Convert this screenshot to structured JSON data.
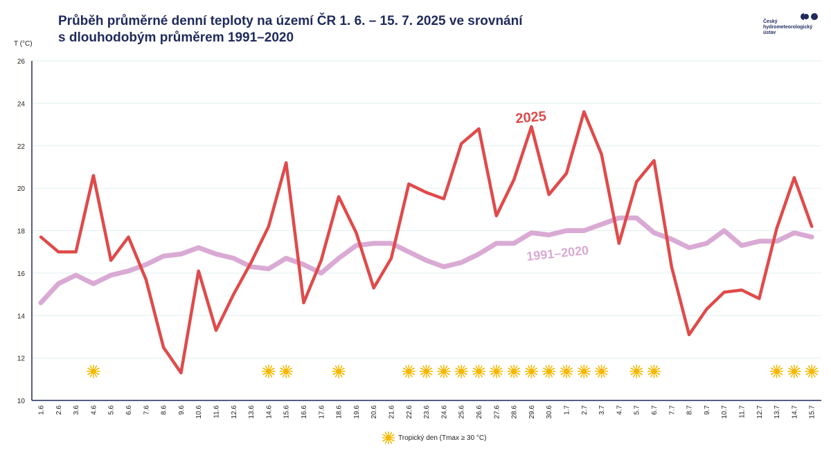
{
  "header": {
    "title_line1": "Průběh průměrné denní teploty na území ČR 1. 6. – 15. 7. 2025 ve srovnání",
    "title_line2": "s dlouhodobým průměrem 1991–2020"
  },
  "logo": {
    "line1": "Český",
    "line2": "hydrometeorologický",
    "line3": "ústav"
  },
  "colors": {
    "series_2025": "#e04a4a",
    "series_normal": "#d9aad3",
    "title": "#1f2a5c",
    "sun": "#f5b800"
  },
  "legend": {
    "icon": "sun-icon",
    "label": "Tropický den (Tmax ≥ 30 °C)"
  },
  "chart_data": {
    "type": "line",
    "ylabel": "T (°C)",
    "ylim": [
      10,
      26
    ],
    "yticks": [
      10,
      12,
      14,
      16,
      18,
      20,
      22,
      24,
      26
    ],
    "grid": true,
    "categories": [
      "1.6",
      "2.6",
      "3.6",
      "4.6",
      "5.6",
      "6.6",
      "7.6",
      "8.6",
      "9.6",
      "10.6",
      "11.6",
      "12.6",
      "13.6",
      "14.6",
      "15.6",
      "16.6",
      "17.6",
      "18.6",
      "19.6",
      "20.6",
      "21.6",
      "22.6",
      "23.6",
      "24.6",
      "25.6",
      "26.6",
      "27.6",
      "28.6",
      "29.6",
      "30.6",
      "1.7",
      "2.7",
      "3.7",
      "4.7",
      "5.7",
      "6.7",
      "7.7",
      "8.7",
      "9.7",
      "10.7",
      "11.7",
      "12.7",
      "13.7",
      "14.7",
      "15.7"
    ],
    "series": [
      {
        "name": "2025",
        "values": [
          17.7,
          17.0,
          17.0,
          20.6,
          16.6,
          17.7,
          15.7,
          12.5,
          11.3,
          16.1,
          13.3,
          15.0,
          16.5,
          18.2,
          21.2,
          14.6,
          16.6,
          19.6,
          17.9,
          15.3,
          16.7,
          20.2,
          19.8,
          19.5,
          22.1,
          22.8,
          18.7,
          20.4,
          22.9,
          19.7,
          20.7,
          23.6,
          21.6,
          17.4,
          20.3,
          21.3,
          16.3,
          13.1,
          14.3,
          15.1,
          15.2,
          14.8,
          18.1,
          20.5,
          18.2
        ]
      },
      {
        "name": "1991–2020",
        "values": [
          14.6,
          15.5,
          15.9,
          15.5,
          15.9,
          16.1,
          16.4,
          16.8,
          16.9,
          17.2,
          16.9,
          16.7,
          16.3,
          16.2,
          16.7,
          16.4,
          16.0,
          16.7,
          17.3,
          17.4,
          17.4,
          17.0,
          16.6,
          16.3,
          16.5,
          16.9,
          17.4,
          17.4,
          17.9,
          17.8,
          18.0,
          18.0,
          18.3,
          18.6,
          18.6,
          17.9,
          17.6,
          17.2,
          17.4,
          18.0,
          17.3,
          17.5,
          17.5,
          17.9,
          17.7
        ]
      }
    ],
    "tropical_days": [
      "4.6",
      "14.6",
      "15.6",
      "18.6",
      "22.6",
      "23.6",
      "24.6",
      "25.6",
      "26.6",
      "27.6",
      "28.6",
      "29.6",
      "30.6",
      "1.7",
      "2.7",
      "3.7",
      "5.7",
      "6.7",
      "13.7",
      "14.7",
      "15.7"
    ]
  }
}
